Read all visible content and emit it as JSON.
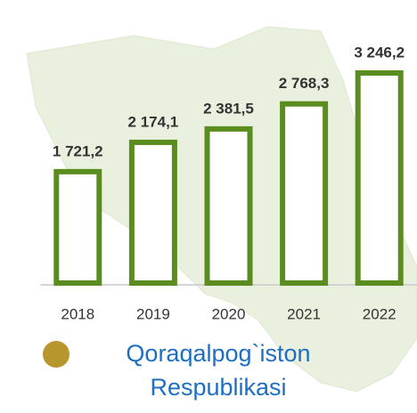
{
  "chart_data": {
    "type": "bar",
    "title": "Qoraqalpog`iston Respublikasi",
    "categories": [
      "2018",
      "2019",
      "2020",
      "2021",
      "2022"
    ],
    "values": [
      1721.2,
      2174.1,
      2381.5,
      2768.3,
      3246.2
    ],
    "value_labels": [
      "1 721,2",
      "2 174,1",
      "2 381,5",
      "2 768,3",
      "3 246,2"
    ],
    "color": "#5b8c1f"
  }
}
